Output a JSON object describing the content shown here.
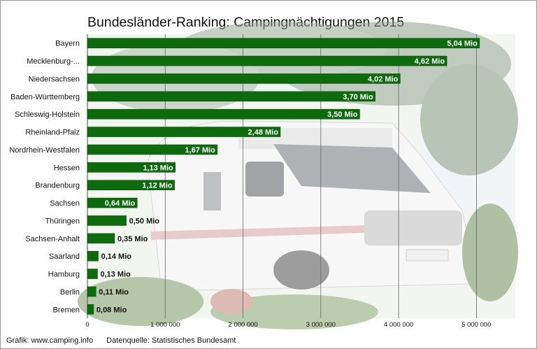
{
  "chart_data": {
    "type": "bar",
    "orientation": "horizontal",
    "title": "Bundesländer-Ranking: Campingnächtigungen 2015",
    "xlabel": "",
    "ylabel": "",
    "categories": [
      "Bayern",
      "Mecklenburg-...",
      "Niedersachsen",
      "Baden-Württemberg",
      "Schleswig-Holstein",
      "Rheinland-Pfalz",
      "Nordrhein-Westfalen",
      "Hessen",
      "Brandenburg",
      "Sachsen",
      "Thüringen",
      "Sachsen-Anhalt",
      "Saarland",
      "Hamburg",
      "Berlin",
      "Bremen"
    ],
    "values": [
      5040000,
      4620000,
      4020000,
      3700000,
      3500000,
      2480000,
      1670000,
      1130000,
      1120000,
      640000,
      500000,
      350000,
      140000,
      130000,
      110000,
      80000
    ],
    "data_labels": [
      "5,04 Mio",
      "4,62 Mio",
      "4,02 Mio",
      "3,70 Mio",
      "3,50 Mio",
      "2,48 Mio",
      "1,67 Mio",
      "1,13 Mio",
      "1,12 Mio",
      "0,64 Mio",
      "0,50 Mio",
      "0,35 Mio",
      "0,14 Mio",
      "0,13 Mio",
      "0,11 Mio",
      "0,08 Mio"
    ],
    "xlim": [
      0,
      5500000
    ],
    "xticks": [
      0,
      1000000,
      2000000,
      3000000,
      4000000,
      5000000
    ],
    "xtick_labels": [
      "0",
      "1 000 000",
      "2 000 000",
      "3 000 000",
      "4 000 000",
      "5 000 000"
    ],
    "grid": true,
    "legend": "none",
    "colors": {
      "bar": "#0d6b0d",
      "bar_dark": "#0a5a0a",
      "label_inside": "#ffffff",
      "label_outside": "#111111",
      "grid": "#666666"
    }
  },
  "footer": {
    "credit": "Grafik: www.camping.info",
    "source": "Datenquelle: Statistisches Bundesamt"
  },
  "background": {
    "description_icon": "camper-van-photo"
  }
}
